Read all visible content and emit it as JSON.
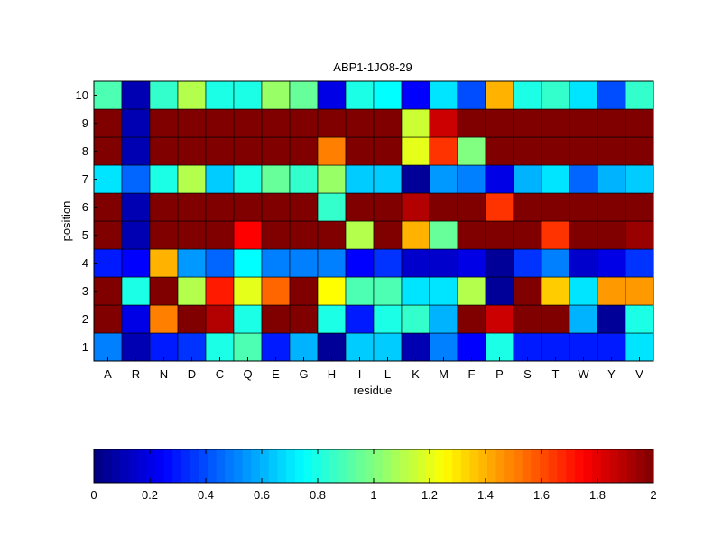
{
  "chart_data": {
    "type": "heatmap",
    "title": "ABP1-1JO8-29",
    "xlabel": "residue",
    "ylabel": "position",
    "columns": [
      "A",
      "R",
      "N",
      "D",
      "C",
      "Q",
      "E",
      "G",
      "H",
      "I",
      "L",
      "K",
      "M",
      "F",
      "P",
      "S",
      "T",
      "W",
      "Y",
      "V"
    ],
    "rows": [
      "1",
      "2",
      "3",
      "4",
      "5",
      "6",
      "7",
      "8",
      "9",
      "10"
    ],
    "values": [
      [
        0.5,
        0.1,
        0.3,
        0.35,
        0.8,
        0.9,
        0.3,
        0.6,
        0.05,
        0.65,
        0.65,
        0.1,
        0.5,
        0.25,
        0.8,
        0.3,
        0.3,
        0.3,
        0.3,
        0.7
      ],
      [
        2.0,
        0.2,
        1.5,
        2.0,
        1.9,
        0.8,
        2.0,
        2.0,
        0.8,
        0.3,
        0.8,
        0.85,
        0.6,
        2.0,
        1.85,
        2.0,
        2.0,
        0.6,
        0.05,
        0.8
      ],
      [
        2.0,
        0.8,
        2.0,
        1.1,
        1.7,
        1.2,
        1.55,
        2.0,
        1.25,
        0.9,
        0.9,
        0.7,
        0.7,
        1.1,
        0.05,
        2.0,
        1.35,
        0.7,
        1.45,
        1.45
      ],
      [
        0.3,
        0.25,
        1.4,
        0.55,
        0.45,
        0.75,
        0.5,
        0.5,
        0.5,
        0.25,
        0.35,
        0.15,
        0.15,
        0.2,
        0.05,
        0.35,
        0.5,
        0.15,
        0.2,
        0.35
      ],
      [
        2.0,
        0.1,
        2.0,
        2.0,
        2.0,
        1.75,
        2.0,
        2.0,
        2.0,
        1.1,
        2.0,
        1.4,
        0.95,
        2.0,
        2.0,
        2.0,
        1.65,
        2.0,
        2.0,
        1.95
      ],
      [
        2.0,
        0.1,
        2.0,
        2.0,
        2.0,
        2.0,
        2.0,
        2.0,
        0.85,
        2.0,
        2.0,
        1.9,
        2.0,
        2.0,
        1.65,
        2.0,
        2.0,
        2.0,
        2.0,
        2.0
      ],
      [
        0.7,
        0.45,
        0.8,
        1.1,
        0.65,
        0.8,
        0.95,
        0.85,
        1.05,
        0.65,
        0.65,
        0.05,
        0.55,
        0.5,
        0.2,
        0.6,
        0.7,
        0.45,
        0.6,
        0.65
      ],
      [
        2.0,
        0.1,
        2.0,
        2.0,
        2.0,
        2.0,
        2.0,
        2.0,
        1.5,
        2.0,
        2.0,
        1.2,
        1.65,
        1.0,
        2.0,
        2.0,
        2.0,
        2.0,
        2.0,
        2.0
      ],
      [
        2.0,
        0.1,
        2.0,
        2.0,
        2.0,
        2.0,
        2.0,
        2.0,
        2.0,
        2.0,
        2.0,
        1.15,
        1.85,
        2.0,
        2.0,
        2.0,
        2.0,
        2.0,
        2.0,
        2.0
      ],
      [
        0.9,
        0.1,
        0.85,
        1.1,
        0.8,
        0.8,
        1.05,
        0.95,
        0.2,
        0.8,
        0.75,
        0.25,
        0.7,
        0.4,
        1.4,
        0.8,
        0.85,
        0.7,
        0.4,
        0.85
      ]
    ],
    "colorbar": {
      "range": [
        0,
        2
      ],
      "ticks": [
        "0",
        "0.2",
        "0.4",
        "0.6",
        "0.8",
        "1",
        "1.2",
        "1.4",
        "1.6",
        "1.8",
        "2"
      ],
      "colormap": "jet",
      "orientation": "horizontal"
    },
    "grid": true
  }
}
